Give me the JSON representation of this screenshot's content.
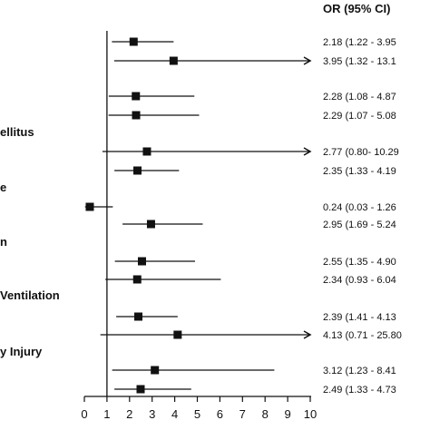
{
  "chart_data": {
    "type": "forest",
    "header": "OR (95% CI)",
    "x_ticks": [
      "0",
      "1",
      "2",
      "3",
      "4",
      "5",
      "6",
      "7",
      "8",
      "9",
      "10"
    ],
    "xlim": [
      0,
      10
    ],
    "reference_line": 1,
    "group_labels": [
      "ellitus",
      "e",
      "n",
      "Ventilation",
      "y Injury"
    ],
    "rows": [
      {
        "or": 2.18,
        "lo": 1.22,
        "hi": 3.95,
        "label": "2.18 (1.22 - 3.95",
        "arrow": false
      },
      {
        "or": 3.95,
        "lo": 1.32,
        "hi": 13.1,
        "label": "3.95 (1.32 - 13.1",
        "arrow": true
      },
      {
        "or": 2.28,
        "lo": 1.08,
        "hi": 4.87,
        "label": "2.28 (1.08 - 4.87",
        "arrow": false
      },
      {
        "or": 2.29,
        "lo": 1.07,
        "hi": 5.08,
        "label": "2.29 (1.07 - 5.08",
        "arrow": false
      },
      {
        "or": 2.77,
        "lo": 0.8,
        "hi": 10.29,
        "label": "2.77 (0.80- 10.29",
        "arrow": true
      },
      {
        "or": 2.35,
        "lo": 1.33,
        "hi": 4.19,
        "label": "2.35 (1.33 - 4.19",
        "arrow": false
      },
      {
        "or": 0.24,
        "lo": 0.03,
        "hi": 1.26,
        "label": "0.24 (0.03 - 1.26",
        "arrow": false
      },
      {
        "or": 2.95,
        "lo": 1.69,
        "hi": 5.24,
        "label": "2.95 (1.69 - 5.24",
        "arrow": false
      },
      {
        "or": 2.55,
        "lo": 1.35,
        "hi": 4.9,
        "label": "2.55 (1.35 - 4.90",
        "arrow": false
      },
      {
        "or": 2.34,
        "lo": 0.93,
        "hi": 6.04,
        "label": "2.34 (0.93 - 6.04",
        "arrow": false
      },
      {
        "or": 2.39,
        "lo": 1.41,
        "hi": 4.13,
        "label": "2.39 (1.41 - 4.13",
        "arrow": false
      },
      {
        "or": 4.13,
        "lo": 0.71,
        "hi": 25.8,
        "label": "4.13 (0.71 - 25.80",
        "arrow": true
      },
      {
        "or": 3.12,
        "lo": 1.23,
        "hi": 8.41,
        "label": "3.12 (1.23 - 8.41",
        "arrow": false
      },
      {
        "or": 2.49,
        "lo": 1.33,
        "hi": 4.73,
        "label": "2.49 (1.33 - 4.73",
        "arrow": false
      }
    ]
  }
}
